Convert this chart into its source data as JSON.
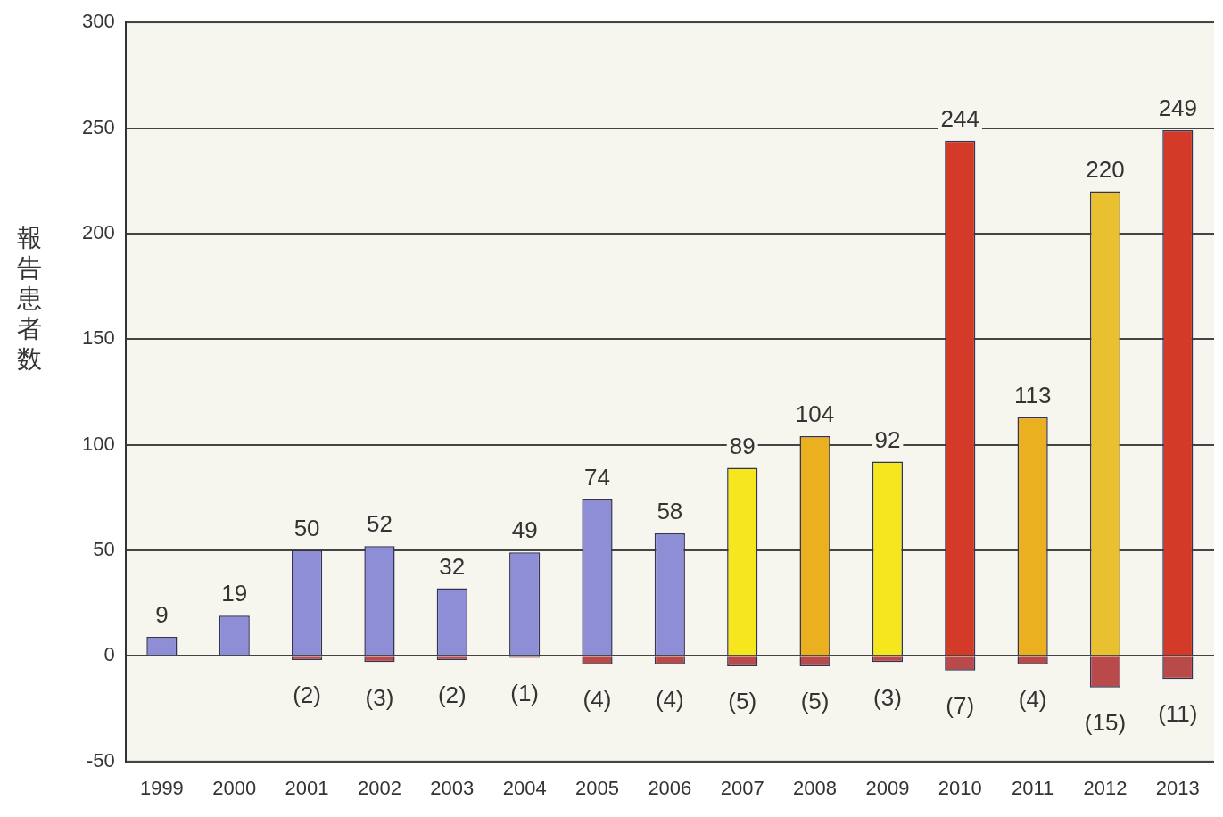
{
  "chart_data": {
    "type": "bar",
    "ylabel": "報告患者数",
    "categories": [
      "1999",
      "2000",
      "2001",
      "2002",
      "2003",
      "2004",
      "2005",
      "2006",
      "2007",
      "2008",
      "2009",
      "2010",
      "2011",
      "2012",
      "2013"
    ],
    "series": [
      {
        "colors": [
          "#8e8ed6",
          "#8e8ed6",
          "#8e8ed6",
          "#8e8ed6",
          "#8e8ed6",
          "#8e8ed6",
          "#8e8ed6",
          "#8e8ed6",
          "#f5e61e",
          "#eab020",
          "#f5e61e",
          "#d43a28",
          "#eab020",
          "#e8c030",
          "#d43a28"
        ],
        "values": [
          9,
          19,
          50,
          52,
          32,
          49,
          74,
          58,
          89,
          104,
          92,
          244,
          113,
          220,
          249
        ]
      },
      {
        "color": "#b84a4a",
        "values": [
          null,
          null,
          -2,
          -3,
          -2,
          -1,
          -4,
          -4,
          -5,
          -5,
          -3,
          -7,
          -4,
          -15,
          -11
        ],
        "value_labels": [
          null,
          null,
          "(2)",
          "(3)",
          "(2)",
          "(1)",
          "(4)",
          "(4)",
          "(5)",
          "(5)",
          "(3)",
          "(7)",
          "(4)",
          "(15)",
          "(11)"
        ]
      }
    ],
    "stacked": true,
    "data_labels": true,
    "ylim": [
      -50,
      300
    ],
    "yticks": [
      -50,
      0,
      50,
      100,
      150,
      200,
      250,
      300
    ],
    "grid": "y",
    "legend": false
  }
}
